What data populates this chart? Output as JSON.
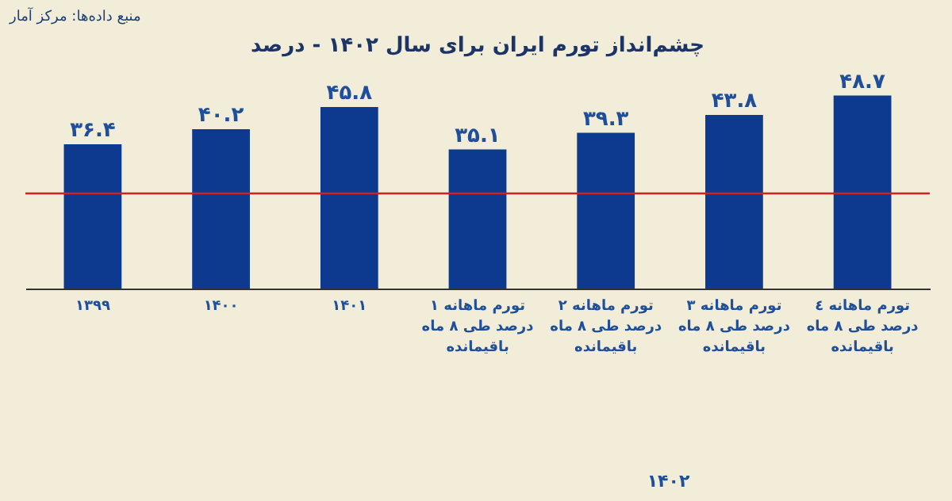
{
  "chart_data": {
    "type": "bar",
    "title": "چشم‌انداز تورم ایران برای سال ۱۴۰۲ - درصد",
    "categories": [
      "۱۳۹۹",
      "۱۴۰۰",
      "۱۴۰۱",
      "تورم ماهانه ۱ درصد طی ۸ ماه باقیمانده",
      "تورم ماهانه ۲ درصد طی ۸ ماه باقیمانده",
      "تورم ماهانه ۳ درصد طی ۸ ماه باقیمانده",
      "تورم ماهانه ٤ درصد طی ۸ ماه باقیمانده"
    ],
    "values": [
      36.4,
      40.2,
      45.8,
      35.1,
      39.3,
      43.8,
      48.7
    ],
    "value_labels": [
      "۳۶.۴",
      "۴۰.۲",
      "۴۵.۸",
      "۳۵.۱",
      "۳۹.۳",
      "۴۳.۸",
      "۴۸.۷"
    ],
    "color": "#0d3a8e",
    "ref_lines": [
      {
        "axis": "y",
        "value": 24,
        "color": "#d42020"
      }
    ],
    "annotations": [
      "منبع داده‌ها: مرکز آمار",
      "۱۴۰۲"
    ]
  }
}
